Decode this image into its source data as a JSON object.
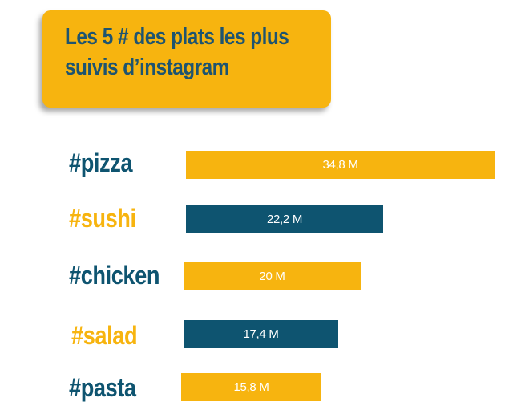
{
  "title": {
    "line1": "Les 5 # des plats les plus",
    "line2": "suivis d’instagram"
  },
  "colors": {
    "gold": "#F7B40F",
    "teal": "#0E5470",
    "label_teal": "#1E5470"
  },
  "chart_data": {
    "type": "bar",
    "orientation": "horizontal",
    "categories": [
      "#pizza",
      "#sushi",
      "#chicken",
      "#salad",
      "#pasta"
    ],
    "values": [
      34.8,
      22.2,
      20,
      17.4,
      15.8
    ],
    "value_labels": [
      "34,8 M",
      "22,2 M",
      "20 M",
      "17,4 M",
      "15,8 M"
    ],
    "bar_colors": [
      "#F7B40F",
      "#0E5470",
      "#F7B40F",
      "#0E5470",
      "#F7B40F"
    ],
    "label_colors": [
      "#0E5470",
      "#F7B40F",
      "#0E5470",
      "#F7B40F",
      "#0E5470"
    ],
    "unit": "M",
    "title": "Les 5 # des plats les plus suivis d’instagram",
    "xlabel": "",
    "ylabel": "",
    "grid": false,
    "legend": "none"
  }
}
